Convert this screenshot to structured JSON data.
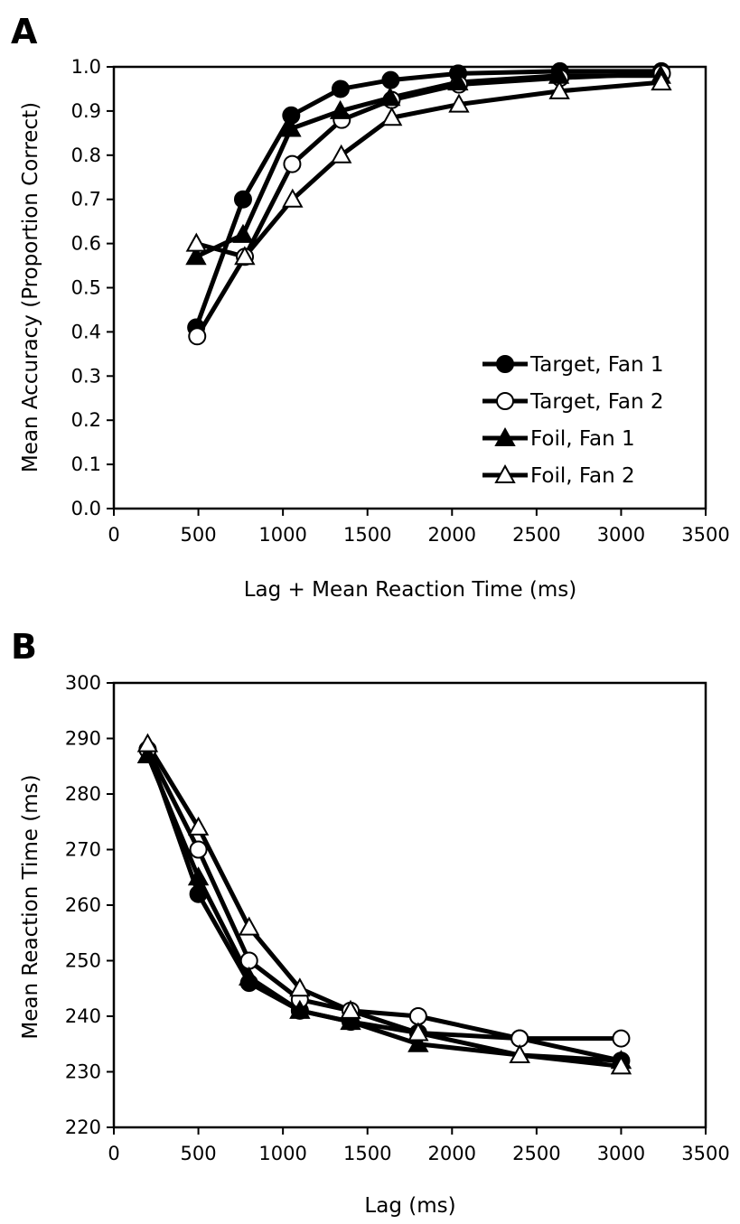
{
  "chart_data": [
    {
      "type": "line",
      "panel": "A",
      "xlabel": "Lag + Mean Reaction Time (ms)",
      "ylabel": "Mean Accuracy (Proportion Correct)",
      "xlim": [
        0,
        3500
      ],
      "ylim": [
        0.0,
        1.0
      ],
      "xticks": [
        0,
        500,
        1000,
        1500,
        2000,
        2500,
        3000,
        3500
      ],
      "yticks": [
        0.0,
        0.1,
        0.2,
        0.3,
        0.4,
        0.5,
        0.6,
        0.7,
        0.8,
        0.9,
        1.0
      ],
      "ytick_decimals": 1,
      "grid": false,
      "legend_position": "bottom-right",
      "series": [
        {
          "name": "Target, Fan 1",
          "marker": "circle",
          "fill": "#000000",
          "x": [
            487,
            764,
            1049,
            1341,
            1637,
            2036,
            2638,
            3238
          ],
          "y": [
            0.41,
            0.7,
            0.89,
            0.95,
            0.97,
            0.985,
            0.99,
            0.99
          ]
        },
        {
          "name": "Target, Fan 2",
          "marker": "circle",
          "fill": "#ffffff",
          "x": [
            493,
            775,
            1055,
            1348,
            1643,
            2041,
            2640,
            3241
          ],
          "y": [
            0.39,
            0.57,
            0.78,
            0.88,
            0.925,
            0.96,
            0.975,
            0.985
          ]
        },
        {
          "name": "Foil, Fan 1",
          "marker": "triangle",
          "fill": "#000000",
          "x": [
            486,
            764,
            1047,
            1339,
            1634,
            2035,
            2632,
            3234
          ],
          "y": [
            0.57,
            0.62,
            0.86,
            0.9,
            0.93,
            0.965,
            0.98,
            0.98
          ]
        },
        {
          "name": "Foil, Fan 2",
          "marker": "triangle",
          "fill": "#ffffff",
          "x": [
            488,
            774,
            1057,
            1345,
            1644,
            2041,
            2635,
            3238
          ],
          "y": [
            0.6,
            0.57,
            0.7,
            0.8,
            0.885,
            0.915,
            0.945,
            0.965
          ]
        }
      ]
    },
    {
      "type": "line",
      "panel": "B",
      "xlabel": "Lag (ms)",
      "ylabel": "Mean Reaction Time (ms)",
      "xlim": [
        0,
        3500
      ],
      "ylim": [
        220,
        300
      ],
      "xticks": [
        0,
        500,
        1000,
        1500,
        2000,
        2500,
        3000,
        3500
      ],
      "yticks": [
        220,
        230,
        240,
        250,
        260,
        270,
        280,
        290,
        300
      ],
      "ytick_decimals": 0,
      "grid": false,
      "legend_position": "none",
      "series": [
        {
          "name": "Target, Fan 1",
          "marker": "circle",
          "fill": "#000000",
          "x": [
            200,
            500,
            800,
            1100,
            1400,
            1800,
            2400,
            3000
          ],
          "y": [
            288,
            262,
            246,
            241,
            239,
            237,
            236,
            232
          ]
        },
        {
          "name": "Target, Fan 2",
          "marker": "circle",
          "fill": "#ffffff",
          "x": [
            200,
            500,
            800,
            1100,
            1400,
            1800,
            2400,
            3000
          ],
          "y": [
            288,
            270,
            250,
            243,
            241,
            240,
            236,
            236
          ]
        },
        {
          "name": "Foil, Fan 1",
          "marker": "triangle",
          "fill": "#000000",
          "x": [
            200,
            500,
            800,
            1100,
            1400,
            1800,
            2400,
            3000
          ],
          "y": [
            287,
            265,
            247,
            241,
            239,
            235,
            233,
            232
          ]
        },
        {
          "name": "Foil, Fan 2",
          "marker": "triangle",
          "fill": "#ffffff",
          "x": [
            200,
            500,
            800,
            1100,
            1400,
            1800,
            2400,
            3000
          ],
          "y": [
            289,
            274,
            256,
            245,
            241,
            237,
            233,
            231
          ]
        }
      ]
    }
  ]
}
